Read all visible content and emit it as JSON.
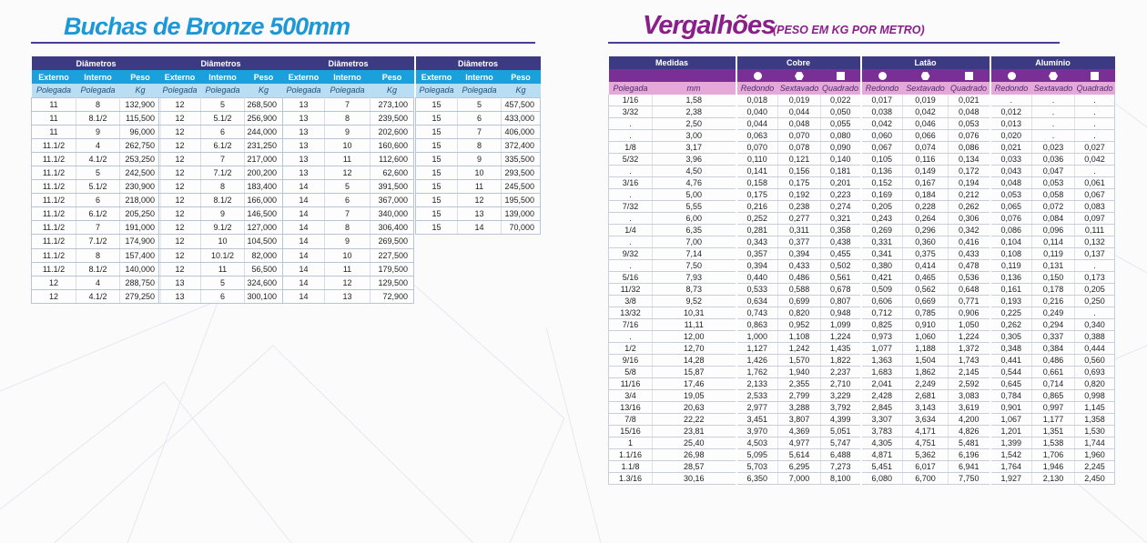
{
  "buchas": {
    "title": "Buchas de Bronze 500mm",
    "header_group": "Diâmetros",
    "col_externo": "Externo",
    "col_interno": "Interno",
    "col_peso": "Peso",
    "unit_externo": "Polegada",
    "unit_interno": "Polegada",
    "unit_peso": "Kg",
    "tables": [
      [
        [
          "11",
          "8",
          "132,900"
        ],
        [
          "11",
          "8.1/2",
          "115,500"
        ],
        [
          "11",
          "9",
          "96,000"
        ],
        [
          "11.1/2",
          "4",
          "262,750"
        ],
        [
          "11.1/2",
          "4.1/2",
          "253,250"
        ],
        [
          "11.1/2",
          "5",
          "242,500"
        ],
        [
          "11.1/2",
          "5.1/2",
          "230,900"
        ],
        [
          "11.1/2",
          "6",
          "218,000"
        ],
        [
          "11.1/2",
          "6.1/2",
          "205,250"
        ],
        [
          "11.1/2",
          "7",
          "191,000"
        ],
        [
          "11.1/2",
          "7.1/2",
          "174,900"
        ],
        [
          "11.1/2",
          "8",
          "157,400"
        ],
        [
          "11.1/2",
          "8.1/2",
          "140,000"
        ],
        [
          "12",
          "4",
          "288,750"
        ],
        [
          "12",
          "4.1/2",
          "279,250"
        ]
      ],
      [
        [
          "12",
          "5",
          "268,500"
        ],
        [
          "12",
          "5.1/2",
          "256,900"
        ],
        [
          "12",
          "6",
          "244,000"
        ],
        [
          "12",
          "6.1/2",
          "231,250"
        ],
        [
          "12",
          "7",
          "217,000"
        ],
        [
          "12",
          "7.1/2",
          "200,200"
        ],
        [
          "12",
          "8",
          "183,400"
        ],
        [
          "12",
          "8.1/2",
          "166,000"
        ],
        [
          "12",
          "9",
          "146,500"
        ],
        [
          "12",
          "9.1/2",
          "127,000"
        ],
        [
          "12",
          "10",
          "104,500"
        ],
        [
          "12",
          "10.1/2",
          "82,000"
        ],
        [
          "12",
          "11",
          "56,500"
        ],
        [
          "13",
          "5",
          "324,600"
        ],
        [
          "13",
          "6",
          "300,100"
        ]
      ],
      [
        [
          "13",
          "7",
          "273,100"
        ],
        [
          "13",
          "8",
          "239,500"
        ],
        [
          "13",
          "9",
          "202,600"
        ],
        [
          "13",
          "10",
          "160,600"
        ],
        [
          "13",
          "11",
          "112,600"
        ],
        [
          "13",
          "12",
          "62,600"
        ],
        [
          "14",
          "5",
          "391,500"
        ],
        [
          "14",
          "6",
          "367,000"
        ],
        [
          "14",
          "7",
          "340,000"
        ],
        [
          "14",
          "8",
          "306,400"
        ],
        [
          "14",
          "9",
          "269,500"
        ],
        [
          "14",
          "10",
          "227,500"
        ],
        [
          "14",
          "11",
          "179,500"
        ],
        [
          "14",
          "12",
          "129,500"
        ],
        [
          "14",
          "13",
          "72,900"
        ]
      ],
      [
        [
          "15",
          "5",
          "457,500"
        ],
        [
          "15",
          "6",
          "433,000"
        ],
        [
          "15",
          "7",
          "406,000"
        ],
        [
          "15",
          "8",
          "372,400"
        ],
        [
          "15",
          "9",
          "335,500"
        ],
        [
          "15",
          "10",
          "293,500"
        ],
        [
          "15",
          "11",
          "245,500"
        ],
        [
          "15",
          "12",
          "195,500"
        ],
        [
          "15",
          "13",
          "139,000"
        ],
        [
          "15",
          "14",
          "70,000"
        ]
      ]
    ]
  },
  "vergalhoes": {
    "title": "Vergalhões",
    "subtitle": "(PESO EM KG POR METRO)",
    "header_medidas": "Medidas",
    "header_cobre": "Cobre",
    "header_latao": "Latão",
    "header_aluminio": "Alumínio",
    "unit_polegada": "Polegada",
    "unit_mm": "mm",
    "sub_redondo": "Redondo",
    "sub_sextavado": "Sextavado",
    "sub_quadrado": "Quadrado",
    "icons": [
      "circle-icon",
      "hexagon-icon",
      "square-icon"
    ],
    "rows": [
      [
        "1/16",
        "1,58",
        "0,018",
        "0,019",
        "0,022",
        "0,017",
        "0,019",
        "0,021",
        ".",
        ".",
        "."
      ],
      [
        "3/32",
        "2,38",
        "0,040",
        "0,044",
        "0,050",
        "0,038",
        "0,042",
        "0,048",
        "0,012",
        ".",
        "."
      ],
      [
        ".",
        "2,50",
        "0,044",
        "0,048",
        "0,055",
        "0,042",
        "0,046",
        "0,053",
        "0,013",
        ".",
        "."
      ],
      [
        ".",
        "3,00",
        "0,063",
        "0,070",
        "0,080",
        "0,060",
        "0,066",
        "0,076",
        "0,020",
        ".",
        "."
      ],
      [
        "1/8",
        "3,17",
        "0,070",
        "0,078",
        "0,090",
        "0,067",
        "0,074",
        "0,086",
        "0,021",
        "0,023",
        "0,027"
      ],
      [
        "5/32",
        "3,96",
        "0,110",
        "0,121",
        "0,140",
        "0,105",
        "0,116",
        "0,134",
        "0,033",
        "0,036",
        "0,042"
      ],
      [
        ".",
        "4,50",
        "0,141",
        "0,156",
        "0,181",
        "0,136",
        "0,149",
        "0,172",
        "0,043",
        "0,047",
        "."
      ],
      [
        "3/16",
        "4,76",
        "0,158",
        "0,175",
        "0,201",
        "0,152",
        "0,167",
        "0,194",
        "0,048",
        "0,053",
        "0,061"
      ],
      [
        ".",
        "5,00",
        "0,175",
        "0,192",
        "0,223",
        "0,169",
        "0,184",
        "0,212",
        "0,053",
        "0,058",
        "0,067"
      ],
      [
        "7/32",
        "5,55",
        "0,216",
        "0,238",
        "0,274",
        "0,205",
        "0,228",
        "0,262",
        "0,065",
        "0,072",
        "0,083"
      ],
      [
        ".",
        "6,00",
        "0,252",
        "0,277",
        "0,321",
        "0,243",
        "0,264",
        "0,306",
        "0,076",
        "0,084",
        "0,097"
      ],
      [
        "1/4",
        "6,35",
        "0,281",
        "0,311",
        "0,358",
        "0,269",
        "0,296",
        "0,342",
        "0,086",
        "0,096",
        "0,111"
      ],
      [
        ".",
        "7,00",
        "0,343",
        "0,377",
        "0,438",
        "0,331",
        "0,360",
        "0,416",
        "0,104",
        "0,114",
        "0,132"
      ],
      [
        "9/32",
        "7,14",
        "0,357",
        "0,394",
        "0,455",
        "0,341",
        "0,375",
        "0,433",
        "0,108",
        "0,119",
        "0,137"
      ],
      [
        ".",
        "7,50",
        "0,394",
        "0,433",
        "0,502",
        "0,380",
        "0,414",
        "0,478",
        "0,119",
        "0,131",
        "."
      ],
      [
        "5/16",
        "7,93",
        "0,440",
        "0,486",
        "0,561",
        "0,421",
        "0,465",
        "0,536",
        "0,136",
        "0,150",
        "0,173"
      ],
      [
        "11/32",
        "8,73",
        "0,533",
        "0,588",
        "0,678",
        "0,509",
        "0,562",
        "0,648",
        "0,161",
        "0,178",
        "0,205"
      ],
      [
        "3/8",
        "9,52",
        "0,634",
        "0,699",
        "0,807",
        "0,606",
        "0,669",
        "0,771",
        "0,193",
        "0,216",
        "0,250"
      ],
      [
        "13/32",
        "10,31",
        "0,743",
        "0,820",
        "0,948",
        "0,712",
        "0,785",
        "0,906",
        "0,225",
        "0,249",
        "."
      ],
      [
        "7/16",
        "11,11",
        "0,863",
        "0,952",
        "1,099",
        "0,825",
        "0,910",
        "1,050",
        "0,262",
        "0,294",
        "0,340"
      ],
      [
        ".",
        "12,00",
        "1,000",
        "1,108",
        "1,224",
        "0,973",
        "1,060",
        "1,224",
        "0,305",
        "0,337",
        "0,388"
      ],
      [
        "1/2",
        "12,70",
        "1,127",
        "1,242",
        "1,435",
        "1,077",
        "1,188",
        "1,372",
        "0,348",
        "0,384",
        "0,444"
      ],
      [
        "9/16",
        "14,28",
        "1,426",
        "1,570",
        "1,822",
        "1,363",
        "1,504",
        "1,743",
        "0,441",
        "0,486",
        "0,560"
      ],
      [
        "5/8",
        "15,87",
        "1,762",
        "1,940",
        "2,237",
        "1,683",
        "1,862",
        "2,145",
        "0,544",
        "0,661",
        "0,693"
      ],
      [
        "11/16",
        "17,46",
        "2,133",
        "2,355",
        "2,710",
        "2,041",
        "2,249",
        "2,592",
        "0,645",
        "0,714",
        "0,820"
      ],
      [
        "3/4",
        "19,05",
        "2,533",
        "2,799",
        "3,229",
        "2,428",
        "2,681",
        "3,083",
        "0,784",
        "0,865",
        "0,998"
      ],
      [
        "13/16",
        "20,63",
        "2,977",
        "3,288",
        "3,792",
        "2,845",
        "3,143",
        "3,619",
        "0,901",
        "0,997",
        "1,145"
      ],
      [
        "7/8",
        "22,22",
        "3,451",
        "3,807",
        "4,399",
        "3,307",
        "3,634",
        "4,200",
        "1,067",
        "1,177",
        "1,358"
      ],
      [
        "15/16",
        "23,81",
        "3,970",
        "4,369",
        "5,051",
        "3,783",
        "4,171",
        "4,826",
        "1,201",
        "1,351",
        "1,530"
      ],
      [
        "1",
        "25,40",
        "4,503",
        "4,977",
        "5,747",
        "4,305",
        "4,751",
        "5,481",
        "1,399",
        "1,538",
        "1,744"
      ],
      [
        "1.1/16",
        "26,98",
        "5,095",
        "5,614",
        "6,488",
        "4,871",
        "5,362",
        "6,196",
        "1,542",
        "1,706",
        "1,960"
      ],
      [
        "1.1/8",
        "28,57",
        "5,703",
        "6,295",
        "7,273",
        "5,451",
        "6,017",
        "6,941",
        "1,764",
        "1,946",
        "2,245"
      ],
      [
        "1.3/16",
        "30,16",
        "6,350",
        "7,000",
        "8,100",
        "6,080",
        "6,700",
        "7,750",
        "1,927",
        "2,130",
        "2,450"
      ]
    ]
  },
  "colors": {
    "left_title": "#1d98d6",
    "right_title": "#8a1f8c",
    "header_dark": "#3d3a84",
    "header_blue": "#1aa0dc",
    "header_light_blue": "#b9def3",
    "header_purple": "#7a2f96",
    "header_pink": "#e5a8d9"
  }
}
